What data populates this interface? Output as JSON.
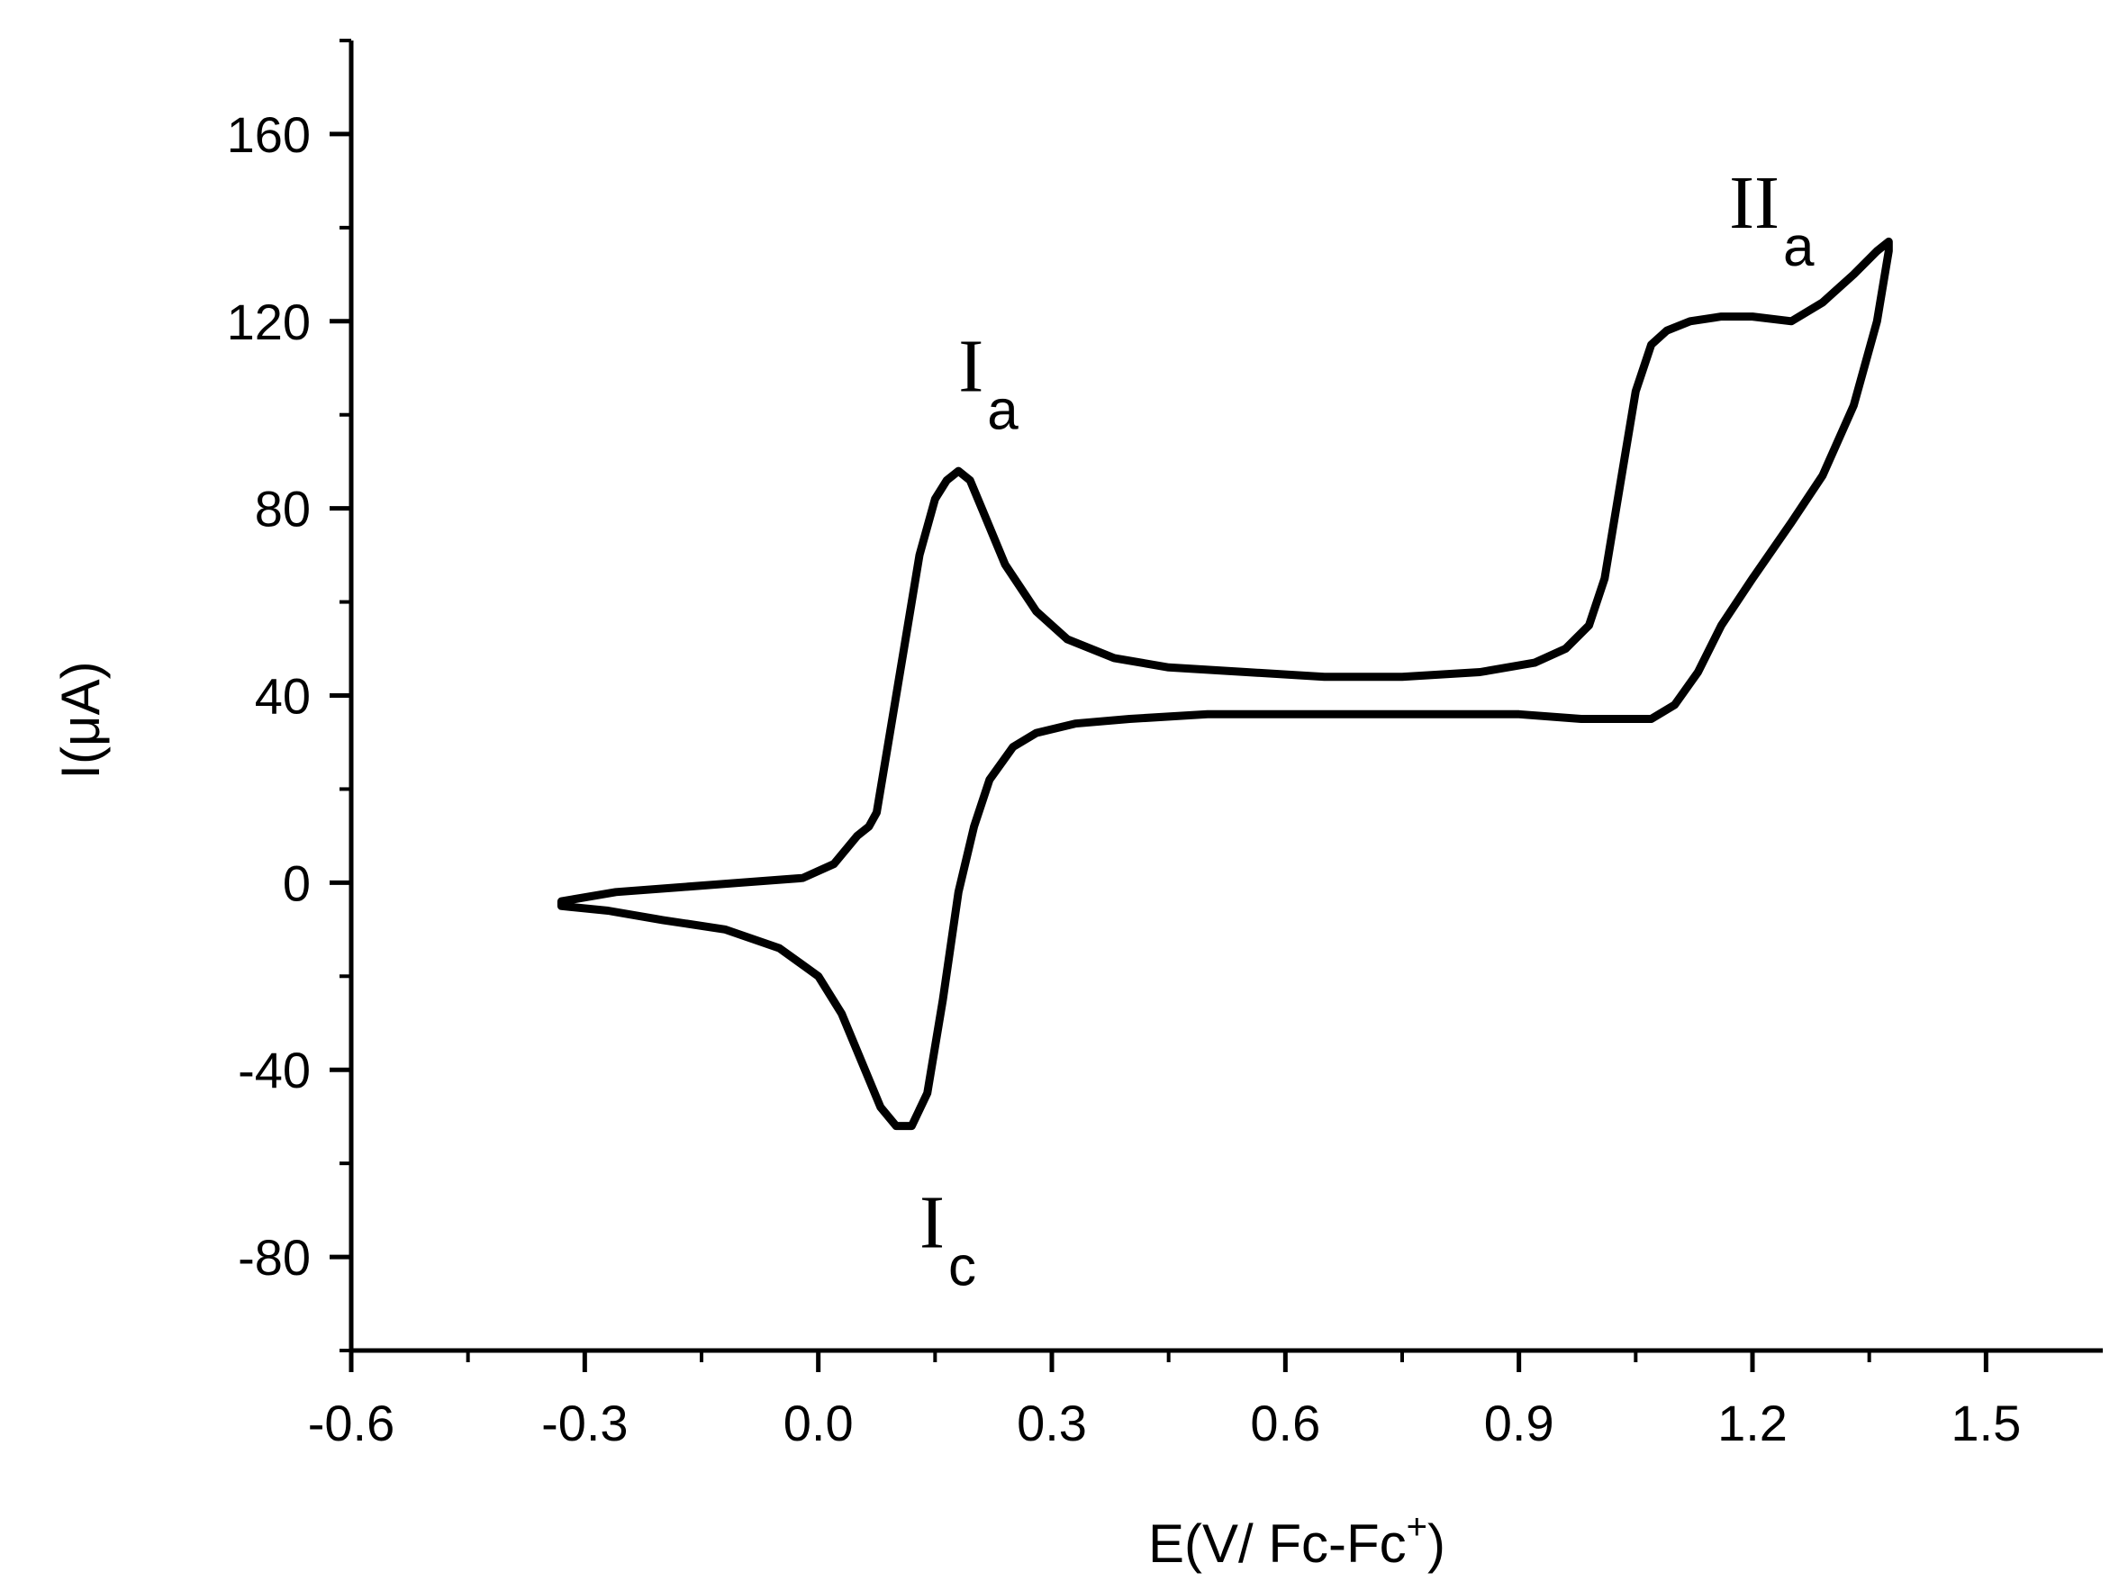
{
  "chart_data": {
    "type": "line",
    "title": "",
    "xlabel": "E(V/ Fc-Fc",
    "xlabel_sup": "+",
    "xlabel_end": ")",
    "ylabel": "I(μA)",
    "xlim": [
      -0.6,
      1.65
    ],
    "ylim": [
      -100,
      180
    ],
    "x_ticks": [
      -0.6,
      -0.3,
      0.0,
      0.3,
      0.6,
      0.9,
      1.2,
      1.5
    ],
    "x_tick_labels": [
      "-0.6",
      "-0.3",
      "0.0",
      "0.3",
      "0.6",
      "0.9",
      "1.2",
      "1.5"
    ],
    "y_ticks": [
      -80,
      -40,
      0,
      40,
      80,
      120,
      160
    ],
    "y_tick_labels": [
      "-80",
      "-40",
      "0",
      "40",
      "80",
      "120",
      "160"
    ],
    "grid": false,
    "line_color": "#000000",
    "series": [
      {
        "x": [
          -0.33,
          -0.26,
          -0.18,
          -0.1,
          -0.02,
          0.02,
          0.05,
          0.065,
          0.075,
          0.09,
          0.11,
          0.13,
          0.15,
          0.165,
          0.18,
          0.195,
          0.21,
          0.24,
          0.28,
          0.32,
          0.38,
          0.45,
          0.55,
          0.65,
          0.75,
          0.85,
          0.92,
          0.96,
          0.99,
          1.01,
          1.03,
          1.05,
          1.07,
          1.09,
          1.12,
          1.16,
          1.2,
          1.25,
          1.29,
          1.33,
          1.36,
          1.375,
          1.375,
          1.36,
          1.33,
          1.29,
          1.25,
          1.2,
          1.16,
          1.13,
          1.1,
          1.07,
          1.04,
          1.01,
          0.98,
          0.9,
          0.8,
          0.65,
          0.5,
          0.4,
          0.33,
          0.28,
          0.25,
          0.22,
          0.2,
          0.18,
          0.16,
          0.14,
          0.12,
          0.1,
          0.08,
          0.06,
          0.03,
          0.0,
          -0.05,
          -0.12,
          -0.2,
          -0.27,
          -0.33
        ],
        "y": [
          -4,
          -2,
          -1,
          0,
          1,
          4,
          10,
          12,
          15,
          30,
          50,
          70,
          82,
          86,
          88,
          86,
          80,
          68,
          58,
          52,
          48,
          46,
          45,
          44,
          44,
          45,
          47,
          50,
          55,
          65,
          85,
          105,
          115,
          118,
          120,
          121,
          121,
          120,
          124,
          130,
          135,
          137,
          135,
          120,
          102,
          87,
          77,
          65,
          55,
          45,
          38,
          35,
          35,
          35,
          35,
          36,
          36,
          36,
          36,
          35,
          34,
          32,
          29,
          22,
          12,
          -2,
          -25,
          -45,
          -52,
          -52,
          -48,
          -40,
          -28,
          -20,
          -14,
          -10,
          -8,
          -6,
          -5
        ]
      }
    ],
    "annotations": [
      {
        "main": "I",
        "sub": "a",
        "x": 0.18,
        "y": 105
      },
      {
        "main": "II",
        "sub": "a",
        "x": 1.17,
        "y": 140
      },
      {
        "main": "I",
        "sub": "c",
        "x": 0.13,
        "y": -78
      }
    ]
  }
}
